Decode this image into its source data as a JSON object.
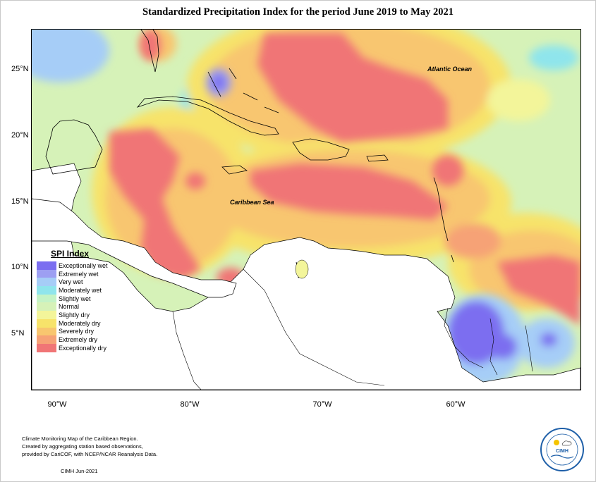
{
  "title": "Standardized Precipitation Index for the period June 2019 to May 2021",
  "map_labels": {
    "atlantic": "Atlantic Ocean",
    "caribbean": "Caribbean Sea"
  },
  "lat_labels": [
    "25°N",
    "20°N",
    "15°N",
    "10°N",
    "5°N"
  ],
  "lon_labels": [
    "90°W",
    "80°W",
    "70°W",
    "60°W"
  ],
  "legend": {
    "title": "SPI Index",
    "items": [
      {
        "label": "Exceptionally wet",
        "color": "#7b6ef0"
      },
      {
        "label": "Extremely wet",
        "color": "#9d9ff2"
      },
      {
        "label": "Very wet",
        "color": "#a6cdf7"
      },
      {
        "label": "Moderately wet",
        "color": "#8fe5ec"
      },
      {
        "label": "Slightly wet",
        "color": "#c4f3c6"
      },
      {
        "label": "Normal",
        "color": "#d6f2b8"
      },
      {
        "label": "Slightly dry",
        "color": "#f3f59a"
      },
      {
        "label": "Moderately dry",
        "color": "#f7e36a"
      },
      {
        "label": "Severely dry",
        "color": "#f8c66f"
      },
      {
        "label": "Extremely dry",
        "color": "#f6a276"
      },
      {
        "label": "Exceptionally dry",
        "color": "#f07576"
      }
    ]
  },
  "footer": {
    "line1": "Climate Monitoring Map of the Caribbean Region.",
    "line2": "Created by aggregating station based observations,",
    "line3": "provided by CariCOF, with NCEP/NCAR Reanalysis Data.",
    "date": "CIMH Jun-2021"
  },
  "logo": {
    "text": "CIMH"
  }
}
